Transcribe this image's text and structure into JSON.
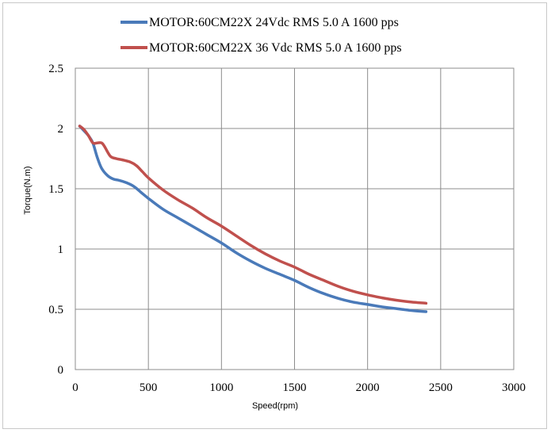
{
  "chart_data": {
    "type": "line",
    "xlabel": "Speed(rpm)",
    "ylabel": "Torque(N.m)",
    "xlim": [
      0,
      3000
    ],
    "ylim": [
      0,
      2.5
    ],
    "x_ticks": [
      "0",
      "500",
      "1000",
      "1500",
      "2000",
      "2500",
      "3000"
    ],
    "y_ticks": [
      "0",
      "0.5",
      "1",
      "1.5",
      "2",
      "2.5"
    ],
    "grid": true,
    "legend_position": "top",
    "series": [
      {
        "name": "MOTOR:60CM22X 24Vdc  RMS 5.0 A  1600 pps",
        "color": "#4a7ab9",
        "points": [
          [
            30,
            2.02
          ],
          [
            60,
            1.98
          ],
          [
            90,
            1.94
          ],
          [
            120,
            1.88
          ],
          [
            150,
            1.76
          ],
          [
            180,
            1.67
          ],
          [
            220,
            1.61
          ],
          [
            260,
            1.58
          ],
          [
            300,
            1.57
          ],
          [
            350,
            1.55
          ],
          [
            400,
            1.52
          ],
          [
            450,
            1.47
          ],
          [
            500,
            1.42
          ],
          [
            600,
            1.33
          ],
          [
            700,
            1.26
          ],
          [
            800,
            1.19
          ],
          [
            900,
            1.12
          ],
          [
            1000,
            1.05
          ],
          [
            1100,
            0.97
          ],
          [
            1200,
            0.9
          ],
          [
            1300,
            0.84
          ],
          [
            1400,
            0.79
          ],
          [
            1500,
            0.74
          ],
          [
            1600,
            0.68
          ],
          [
            1700,
            0.63
          ],
          [
            1800,
            0.59
          ],
          [
            1900,
            0.56
          ],
          [
            2000,
            0.54
          ],
          [
            2100,
            0.52
          ],
          [
            2200,
            0.505
          ],
          [
            2300,
            0.49
          ],
          [
            2400,
            0.48
          ]
        ]
      },
      {
        "name": "MOTOR:60CM22X 36 Vdc  RMS 5.0 A  1600 pps",
        "color": "#c0504d",
        "points": [
          [
            30,
            2.02
          ],
          [
            60,
            1.99
          ],
          [
            90,
            1.94
          ],
          [
            120,
            1.88
          ],
          [
            150,
            1.88
          ],
          [
            180,
            1.88
          ],
          [
            200,
            1.85
          ],
          [
            240,
            1.77
          ],
          [
            280,
            1.75
          ],
          [
            320,
            1.74
          ],
          [
            380,
            1.72
          ],
          [
            420,
            1.69
          ],
          [
            460,
            1.64
          ],
          [
            500,
            1.59
          ],
          [
            600,
            1.49
          ],
          [
            700,
            1.41
          ],
          [
            800,
            1.34
          ],
          [
            900,
            1.26
          ],
          [
            1000,
            1.19
          ],
          [
            1100,
            1.11
          ],
          [
            1200,
            1.03
          ],
          [
            1300,
            0.96
          ],
          [
            1400,
            0.9
          ],
          [
            1500,
            0.85
          ],
          [
            1600,
            0.79
          ],
          [
            1700,
            0.74
          ],
          [
            1800,
            0.69
          ],
          [
            1900,
            0.65
          ],
          [
            2000,
            0.62
          ],
          [
            2100,
            0.595
          ],
          [
            2200,
            0.575
          ],
          [
            2300,
            0.56
          ],
          [
            2400,
            0.55
          ]
        ]
      }
    ]
  }
}
